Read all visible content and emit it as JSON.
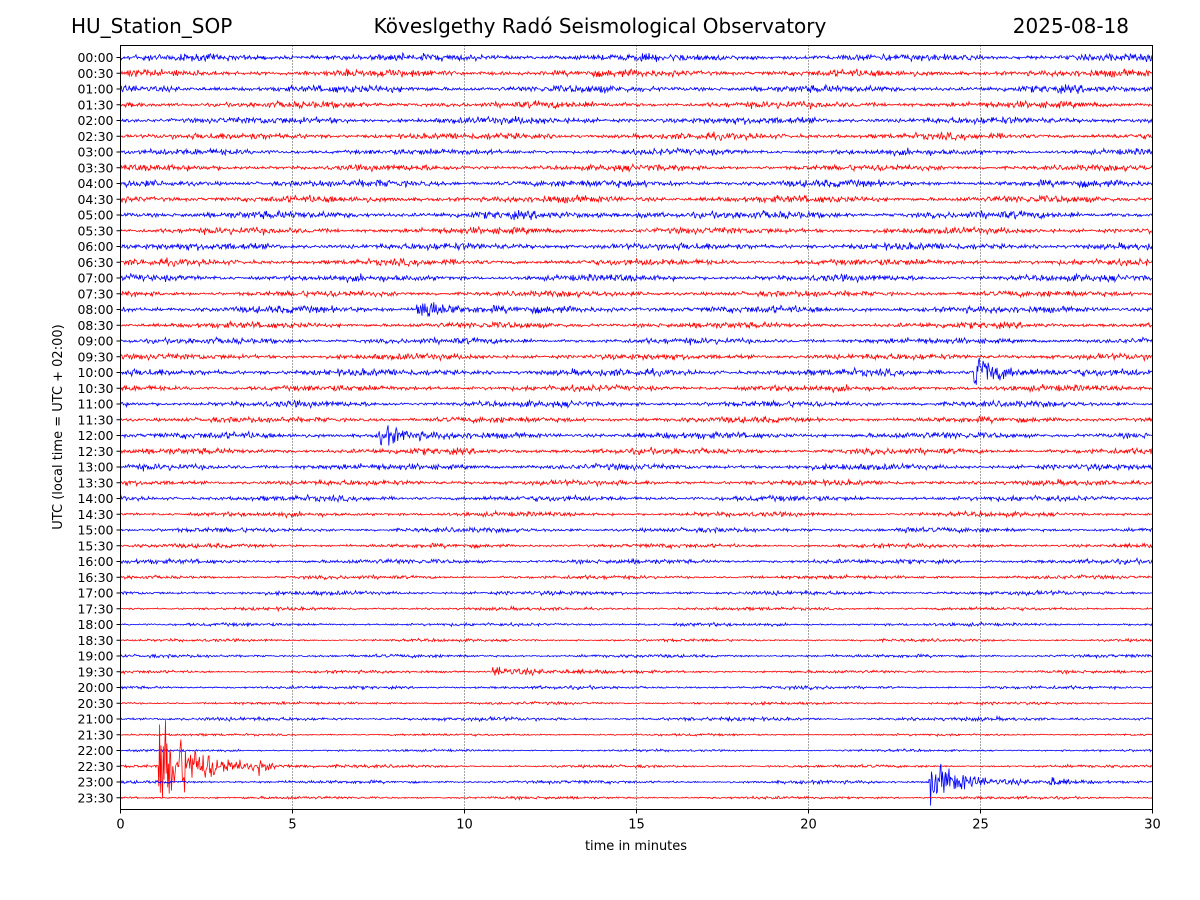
{
  "header": {
    "station": "HU_Station_SOP",
    "title": "Köveslgethy Radó Seismological Observatory",
    "date": "2025-08-18"
  },
  "chart_data": {
    "type": "line",
    "title": "Köveslgethy Radó Seismological Observatory",
    "xlabel": "time in minutes",
    "ylabel": "UTC (local time = UTC + 02:00)",
    "xlim": [
      0,
      30
    ],
    "xticks": [
      0,
      5,
      10,
      15,
      20,
      25,
      30
    ],
    "grid": "vertical dotted",
    "colors": [
      "#0000ff",
      "#ff0000"
    ],
    "rows": [
      "00:00",
      "00:30",
      "01:00",
      "01:30",
      "02:00",
      "02:30",
      "03:00",
      "03:30",
      "04:00",
      "04:30",
      "05:00",
      "05:30",
      "06:00",
      "06:30",
      "07:00",
      "07:30",
      "08:00",
      "08:30",
      "09:00",
      "09:30",
      "10:00",
      "10:30",
      "11:00",
      "11:30",
      "12:00",
      "12:30",
      "13:00",
      "13:30",
      "14:00",
      "14:30",
      "15:00",
      "15:30",
      "16:00",
      "16:30",
      "17:00",
      "17:30",
      "18:00",
      "18:30",
      "19:00",
      "19:30",
      "20:00",
      "20:30",
      "21:00",
      "21:30",
      "22:00",
      "22:30",
      "23:00",
      "23:30"
    ],
    "noise_level": [
      3,
      3,
      3,
      2.8,
      3,
      2.8,
      2.6,
      2.6,
      3,
      3,
      3.2,
      2.8,
      3,
      2.8,
      2.8,
      2.6,
      3,
      2.6,
      2.5,
      2.6,
      3,
      2.6,
      2.6,
      2.5,
      2.8,
      2.6,
      2.6,
      2.3,
      2.4,
      2,
      2,
      1.8,
      2,
      1.6,
      1.8,
      1.4,
      1.4,
      1.2,
      1.4,
      1.3,
      1.4,
      1.2,
      1.6,
      1,
      1,
      1.2,
      1.4,
      1.2
    ],
    "events": [
      {
        "row": "05:00",
        "start": 15.0,
        "amplitude": 2,
        "duration": 1.5
      },
      {
        "row": "08:00",
        "start": 8.6,
        "amplitude": 12,
        "duration": 1.8
      },
      {
        "row": "10:00",
        "start": 24.8,
        "amplitude": 20,
        "duration": 1.5
      },
      {
        "row": "12:00",
        "start": 7.5,
        "amplitude": 10,
        "duration": 1.6
      },
      {
        "row": "15:00",
        "start": 22.8,
        "amplitude": 5,
        "duration": 0.4
      },
      {
        "row": "19:30",
        "start": 10.8,
        "amplitude": 4,
        "duration": 3.5
      },
      {
        "row": "22:30",
        "start": 1.1,
        "amplitude": 45,
        "duration": 2.8
      },
      {
        "row": "22:30",
        "start": 4.0,
        "amplitude": 5,
        "duration": 0.5
      },
      {
        "row": "23:00",
        "start": 23.5,
        "amplitude": 18,
        "duration": 2.5
      },
      {
        "row": "23:00",
        "start": 27.0,
        "amplitude": 4,
        "duration": 0.8
      }
    ]
  }
}
